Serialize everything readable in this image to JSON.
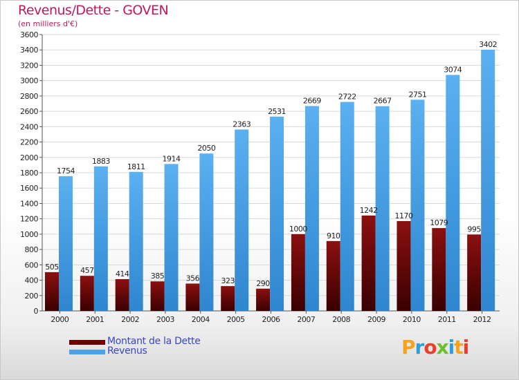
{
  "title": "Revenus/Dette - GOVEN",
  "subtitle": "(en milliers d'€)",
  "chart_data": {
    "type": "bar",
    "categories": [
      "2000",
      "2001",
      "2002",
      "2003",
      "2004",
      "2005",
      "2006",
      "2007",
      "2008",
      "2009",
      "2010",
      "2011",
      "2012"
    ],
    "series": [
      {
        "name": "Montant de la Dette",
        "color": "#7a0a0a",
        "values": [
          505,
          457,
          414,
          385,
          356,
          323,
          290,
          1000,
          910,
          1242,
          1170,
          1079,
          995
        ]
      },
      {
        "name": "Revenus",
        "color": "#4aa3e8",
        "values": [
          1754,
          1883,
          1811,
          1914,
          2050,
          2363,
          2531,
          2669,
          2722,
          2667,
          2751,
          3074,
          3402
        ]
      }
    ],
    "yticks": [
      0,
      200,
      400,
      600,
      800,
      1000,
      1200,
      1400,
      1600,
      1800,
      2000,
      2200,
      2400,
      2600,
      2800,
      3000,
      3200,
      3400,
      3600
    ],
    "ylim": [
      0,
      3600
    ],
    "grid": true,
    "legend": "bottom-left"
  },
  "legend": [
    {
      "label": "Montant de la Dette",
      "color": "#6b0000"
    },
    {
      "label": "Revenus",
      "color": "#4aa3e8"
    }
  ],
  "logo": {
    "letters": [
      "P",
      "r",
      "o",
      "x",
      "i",
      "t",
      "i"
    ],
    "colors": [
      "#f7a21b",
      "#2aa0d8",
      "#e83e2a",
      "#6cbf2b",
      "#2aa0d8",
      "#f7a21b",
      "#e83e2a"
    ]
  }
}
